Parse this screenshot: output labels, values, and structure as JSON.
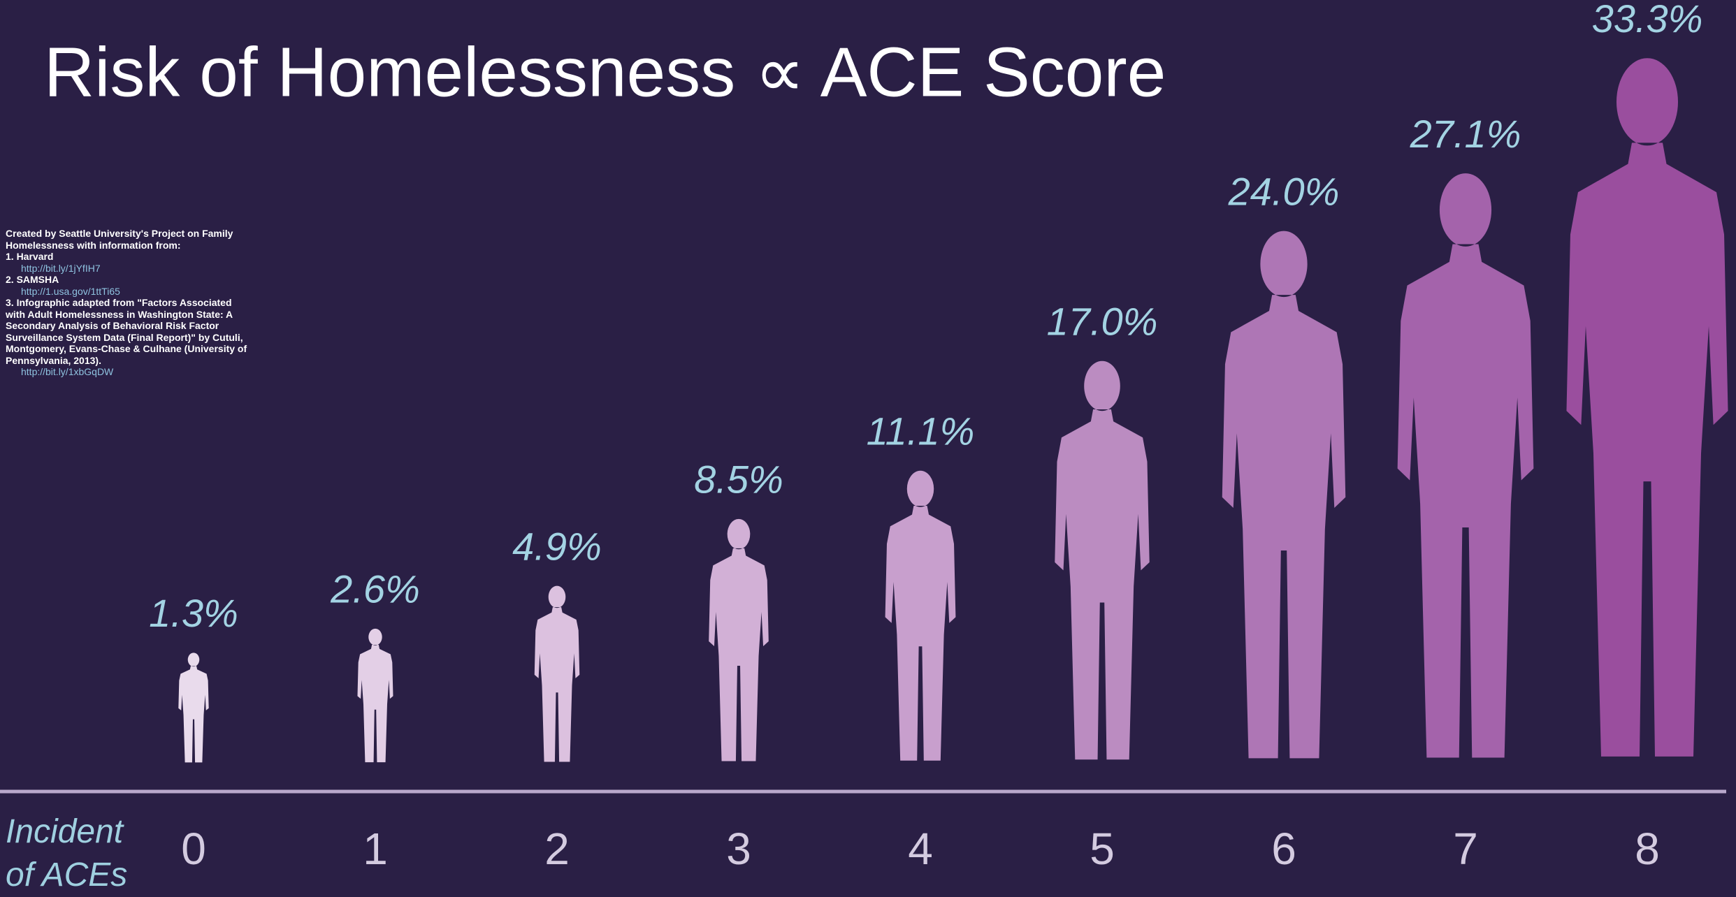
{
  "chart_data": {
    "type": "pictograph",
    "title": "Risk of Homelessness ∝ ACE Score",
    "x_label": "Incident of ACEs",
    "categories": [
      "0",
      "1",
      "2",
      "3",
      "4",
      "5",
      "6",
      "7",
      "8"
    ],
    "values": [
      1.3,
      2.6,
      4.9,
      8.5,
      11.1,
      17.0,
      24.0,
      27.1,
      33.3
    ],
    "value_labels": [
      "1.3%",
      "2.6%",
      "4.9%",
      "8.5%",
      "11.1%",
      "17.0%",
      "24.0%",
      "27.1%",
      "33.3%"
    ],
    "colors": [
      "#e9dbec",
      "#e3cfe6",
      "#dcc1df",
      "#d2b0d6",
      "#c89fcd",
      "#bb8cc1",
      "#ae76b5",
      "#a463ab",
      "#9a4e9e"
    ],
    "note": {
      "intro": "Created by Seattle University's Project on Family Homelessness with information from:",
      "sources": [
        {
          "title": "1. Harvard",
          "url": "http://bit.ly/1jYfIH7"
        },
        {
          "title": "2. SAMSHA",
          "url": "http://1.usa.gov/1ttTi65"
        },
        {
          "title": "3. Infographic adapted from \"Factors Associated with Adult Homelessness in Washington State: A Secondary Analysis of Behavioral Risk Factor Surveillance System Data (Final Report)\" by Cutuli, Montgomery, Evans-Chase & Culhane (University of Pennsylvania, 2013).",
          "url": "http://bit.ly/1xbGqDW"
        }
      ]
    }
  }
}
